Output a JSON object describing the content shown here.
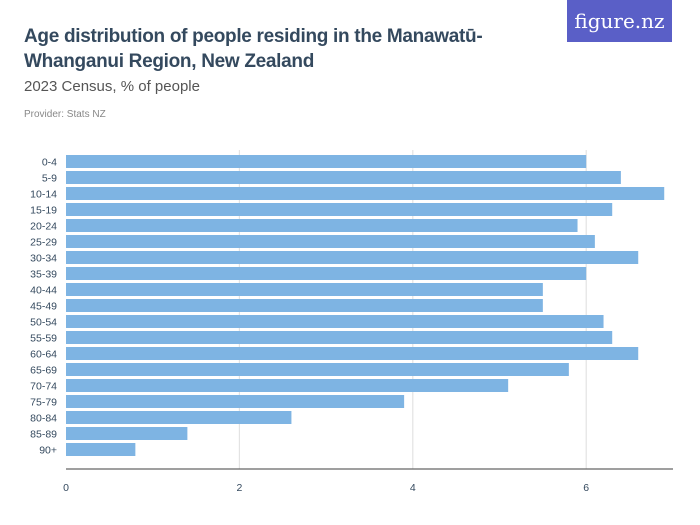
{
  "header": {
    "title": "Age distribution of people residing in the Manawatū-Whanganui Region, New Zealand",
    "subtitle": "2023 Census, % of people",
    "provider": "Provider: Stats NZ",
    "logo": "figure.nz"
  },
  "chart_data": {
    "type": "bar",
    "orientation": "horizontal",
    "title": "Age distribution of people residing in the Manawatū-Whanganui Region, New Zealand",
    "subtitle": "2023 Census, % of people",
    "categories": [
      "0-4",
      "5-9",
      "10-14",
      "15-19",
      "20-24",
      "25-29",
      "30-34",
      "35-39",
      "40-44",
      "45-49",
      "50-54",
      "55-59",
      "60-64",
      "65-69",
      "70-74",
      "75-79",
      "80-84",
      "85-89",
      "90+"
    ],
    "values": [
      6.0,
      6.4,
      6.9,
      6.3,
      5.9,
      6.1,
      6.6,
      6.0,
      5.5,
      5.5,
      6.2,
      6.3,
      6.6,
      5.8,
      5.1,
      3.9,
      2.6,
      1.4,
      0.8
    ],
    "xlim": [
      0,
      7
    ],
    "xticks": [
      "0",
      "2",
      "4",
      "6"
    ],
    "grid": true,
    "bar_color": "#7eb4e3",
    "xlabel": "",
    "ylabel": ""
  }
}
